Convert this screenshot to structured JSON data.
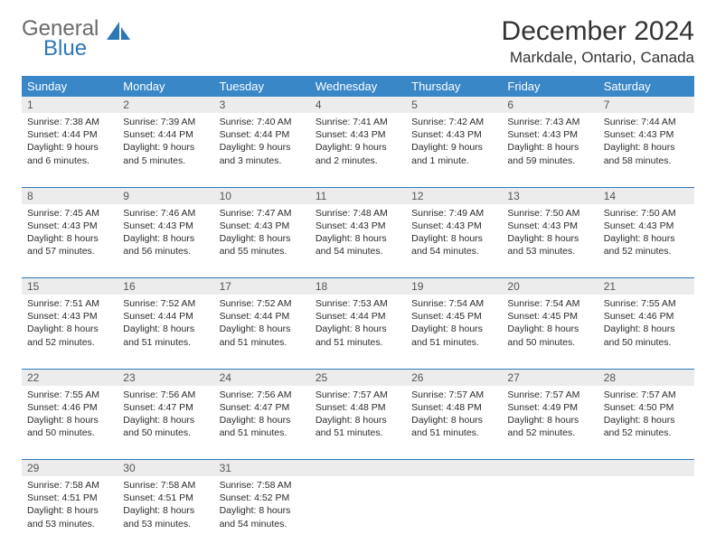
{
  "brand": {
    "part1": "General",
    "part2": "Blue"
  },
  "title": "December 2024",
  "location": "Markdale, Ontario, Canada",
  "colors": {
    "header_bg": "#3a87c7",
    "header_text": "#ffffff",
    "daynum_bg": "#ececec",
    "rule": "#2d77b8",
    "text": "#2b2b2b",
    "logo_gray": "#6a6a6a",
    "logo_blue": "#2d77b8",
    "page_bg": "#ffffff"
  },
  "weekdays": [
    "Sunday",
    "Monday",
    "Tuesday",
    "Wednesday",
    "Thursday",
    "Friday",
    "Saturday"
  ],
  "weeks": [
    [
      {
        "n": "1",
        "sunrise": "Sunrise: 7:38 AM",
        "sunset": "Sunset: 4:44 PM",
        "daylight": "Daylight: 9 hours and 6 minutes."
      },
      {
        "n": "2",
        "sunrise": "Sunrise: 7:39 AM",
        "sunset": "Sunset: 4:44 PM",
        "daylight": "Daylight: 9 hours and 5 minutes."
      },
      {
        "n": "3",
        "sunrise": "Sunrise: 7:40 AM",
        "sunset": "Sunset: 4:44 PM",
        "daylight": "Daylight: 9 hours and 3 minutes."
      },
      {
        "n": "4",
        "sunrise": "Sunrise: 7:41 AM",
        "sunset": "Sunset: 4:43 PM",
        "daylight": "Daylight: 9 hours and 2 minutes."
      },
      {
        "n": "5",
        "sunrise": "Sunrise: 7:42 AM",
        "sunset": "Sunset: 4:43 PM",
        "daylight": "Daylight: 9 hours and 1 minute."
      },
      {
        "n": "6",
        "sunrise": "Sunrise: 7:43 AM",
        "sunset": "Sunset: 4:43 PM",
        "daylight": "Daylight: 8 hours and 59 minutes."
      },
      {
        "n": "7",
        "sunrise": "Sunrise: 7:44 AM",
        "sunset": "Sunset: 4:43 PM",
        "daylight": "Daylight: 8 hours and 58 minutes."
      }
    ],
    [
      {
        "n": "8",
        "sunrise": "Sunrise: 7:45 AM",
        "sunset": "Sunset: 4:43 PM",
        "daylight": "Daylight: 8 hours and 57 minutes."
      },
      {
        "n": "9",
        "sunrise": "Sunrise: 7:46 AM",
        "sunset": "Sunset: 4:43 PM",
        "daylight": "Daylight: 8 hours and 56 minutes."
      },
      {
        "n": "10",
        "sunrise": "Sunrise: 7:47 AM",
        "sunset": "Sunset: 4:43 PM",
        "daylight": "Daylight: 8 hours and 55 minutes."
      },
      {
        "n": "11",
        "sunrise": "Sunrise: 7:48 AM",
        "sunset": "Sunset: 4:43 PM",
        "daylight": "Daylight: 8 hours and 54 minutes."
      },
      {
        "n": "12",
        "sunrise": "Sunrise: 7:49 AM",
        "sunset": "Sunset: 4:43 PM",
        "daylight": "Daylight: 8 hours and 54 minutes."
      },
      {
        "n": "13",
        "sunrise": "Sunrise: 7:50 AM",
        "sunset": "Sunset: 4:43 PM",
        "daylight": "Daylight: 8 hours and 53 minutes."
      },
      {
        "n": "14",
        "sunrise": "Sunrise: 7:50 AM",
        "sunset": "Sunset: 4:43 PM",
        "daylight": "Daylight: 8 hours and 52 minutes."
      }
    ],
    [
      {
        "n": "15",
        "sunrise": "Sunrise: 7:51 AM",
        "sunset": "Sunset: 4:43 PM",
        "daylight": "Daylight: 8 hours and 52 minutes."
      },
      {
        "n": "16",
        "sunrise": "Sunrise: 7:52 AM",
        "sunset": "Sunset: 4:44 PM",
        "daylight": "Daylight: 8 hours and 51 minutes."
      },
      {
        "n": "17",
        "sunrise": "Sunrise: 7:52 AM",
        "sunset": "Sunset: 4:44 PM",
        "daylight": "Daylight: 8 hours and 51 minutes."
      },
      {
        "n": "18",
        "sunrise": "Sunrise: 7:53 AM",
        "sunset": "Sunset: 4:44 PM",
        "daylight": "Daylight: 8 hours and 51 minutes."
      },
      {
        "n": "19",
        "sunrise": "Sunrise: 7:54 AM",
        "sunset": "Sunset: 4:45 PM",
        "daylight": "Daylight: 8 hours and 51 minutes."
      },
      {
        "n": "20",
        "sunrise": "Sunrise: 7:54 AM",
        "sunset": "Sunset: 4:45 PM",
        "daylight": "Daylight: 8 hours and 50 minutes."
      },
      {
        "n": "21",
        "sunrise": "Sunrise: 7:55 AM",
        "sunset": "Sunset: 4:46 PM",
        "daylight": "Daylight: 8 hours and 50 minutes."
      }
    ],
    [
      {
        "n": "22",
        "sunrise": "Sunrise: 7:55 AM",
        "sunset": "Sunset: 4:46 PM",
        "daylight": "Daylight: 8 hours and 50 minutes."
      },
      {
        "n": "23",
        "sunrise": "Sunrise: 7:56 AM",
        "sunset": "Sunset: 4:47 PM",
        "daylight": "Daylight: 8 hours and 50 minutes."
      },
      {
        "n": "24",
        "sunrise": "Sunrise: 7:56 AM",
        "sunset": "Sunset: 4:47 PM",
        "daylight": "Daylight: 8 hours and 51 minutes."
      },
      {
        "n": "25",
        "sunrise": "Sunrise: 7:57 AM",
        "sunset": "Sunset: 4:48 PM",
        "daylight": "Daylight: 8 hours and 51 minutes."
      },
      {
        "n": "26",
        "sunrise": "Sunrise: 7:57 AM",
        "sunset": "Sunset: 4:48 PM",
        "daylight": "Daylight: 8 hours and 51 minutes."
      },
      {
        "n": "27",
        "sunrise": "Sunrise: 7:57 AM",
        "sunset": "Sunset: 4:49 PM",
        "daylight": "Daylight: 8 hours and 52 minutes."
      },
      {
        "n": "28",
        "sunrise": "Sunrise: 7:57 AM",
        "sunset": "Sunset: 4:50 PM",
        "daylight": "Daylight: 8 hours and 52 minutes."
      }
    ],
    [
      {
        "n": "29",
        "sunrise": "Sunrise: 7:58 AM",
        "sunset": "Sunset: 4:51 PM",
        "daylight": "Daylight: 8 hours and 53 minutes."
      },
      {
        "n": "30",
        "sunrise": "Sunrise: 7:58 AM",
        "sunset": "Sunset: 4:51 PM",
        "daylight": "Daylight: 8 hours and 53 minutes."
      },
      {
        "n": "31",
        "sunrise": "Sunrise: 7:58 AM",
        "sunset": "Sunset: 4:52 PM",
        "daylight": "Daylight: 8 hours and 54 minutes."
      },
      {
        "n": "",
        "sunrise": "",
        "sunset": "",
        "daylight": ""
      },
      {
        "n": "",
        "sunrise": "",
        "sunset": "",
        "daylight": ""
      },
      {
        "n": "",
        "sunrise": "",
        "sunset": "",
        "daylight": ""
      },
      {
        "n": "",
        "sunrise": "",
        "sunset": "",
        "daylight": ""
      }
    ]
  ]
}
